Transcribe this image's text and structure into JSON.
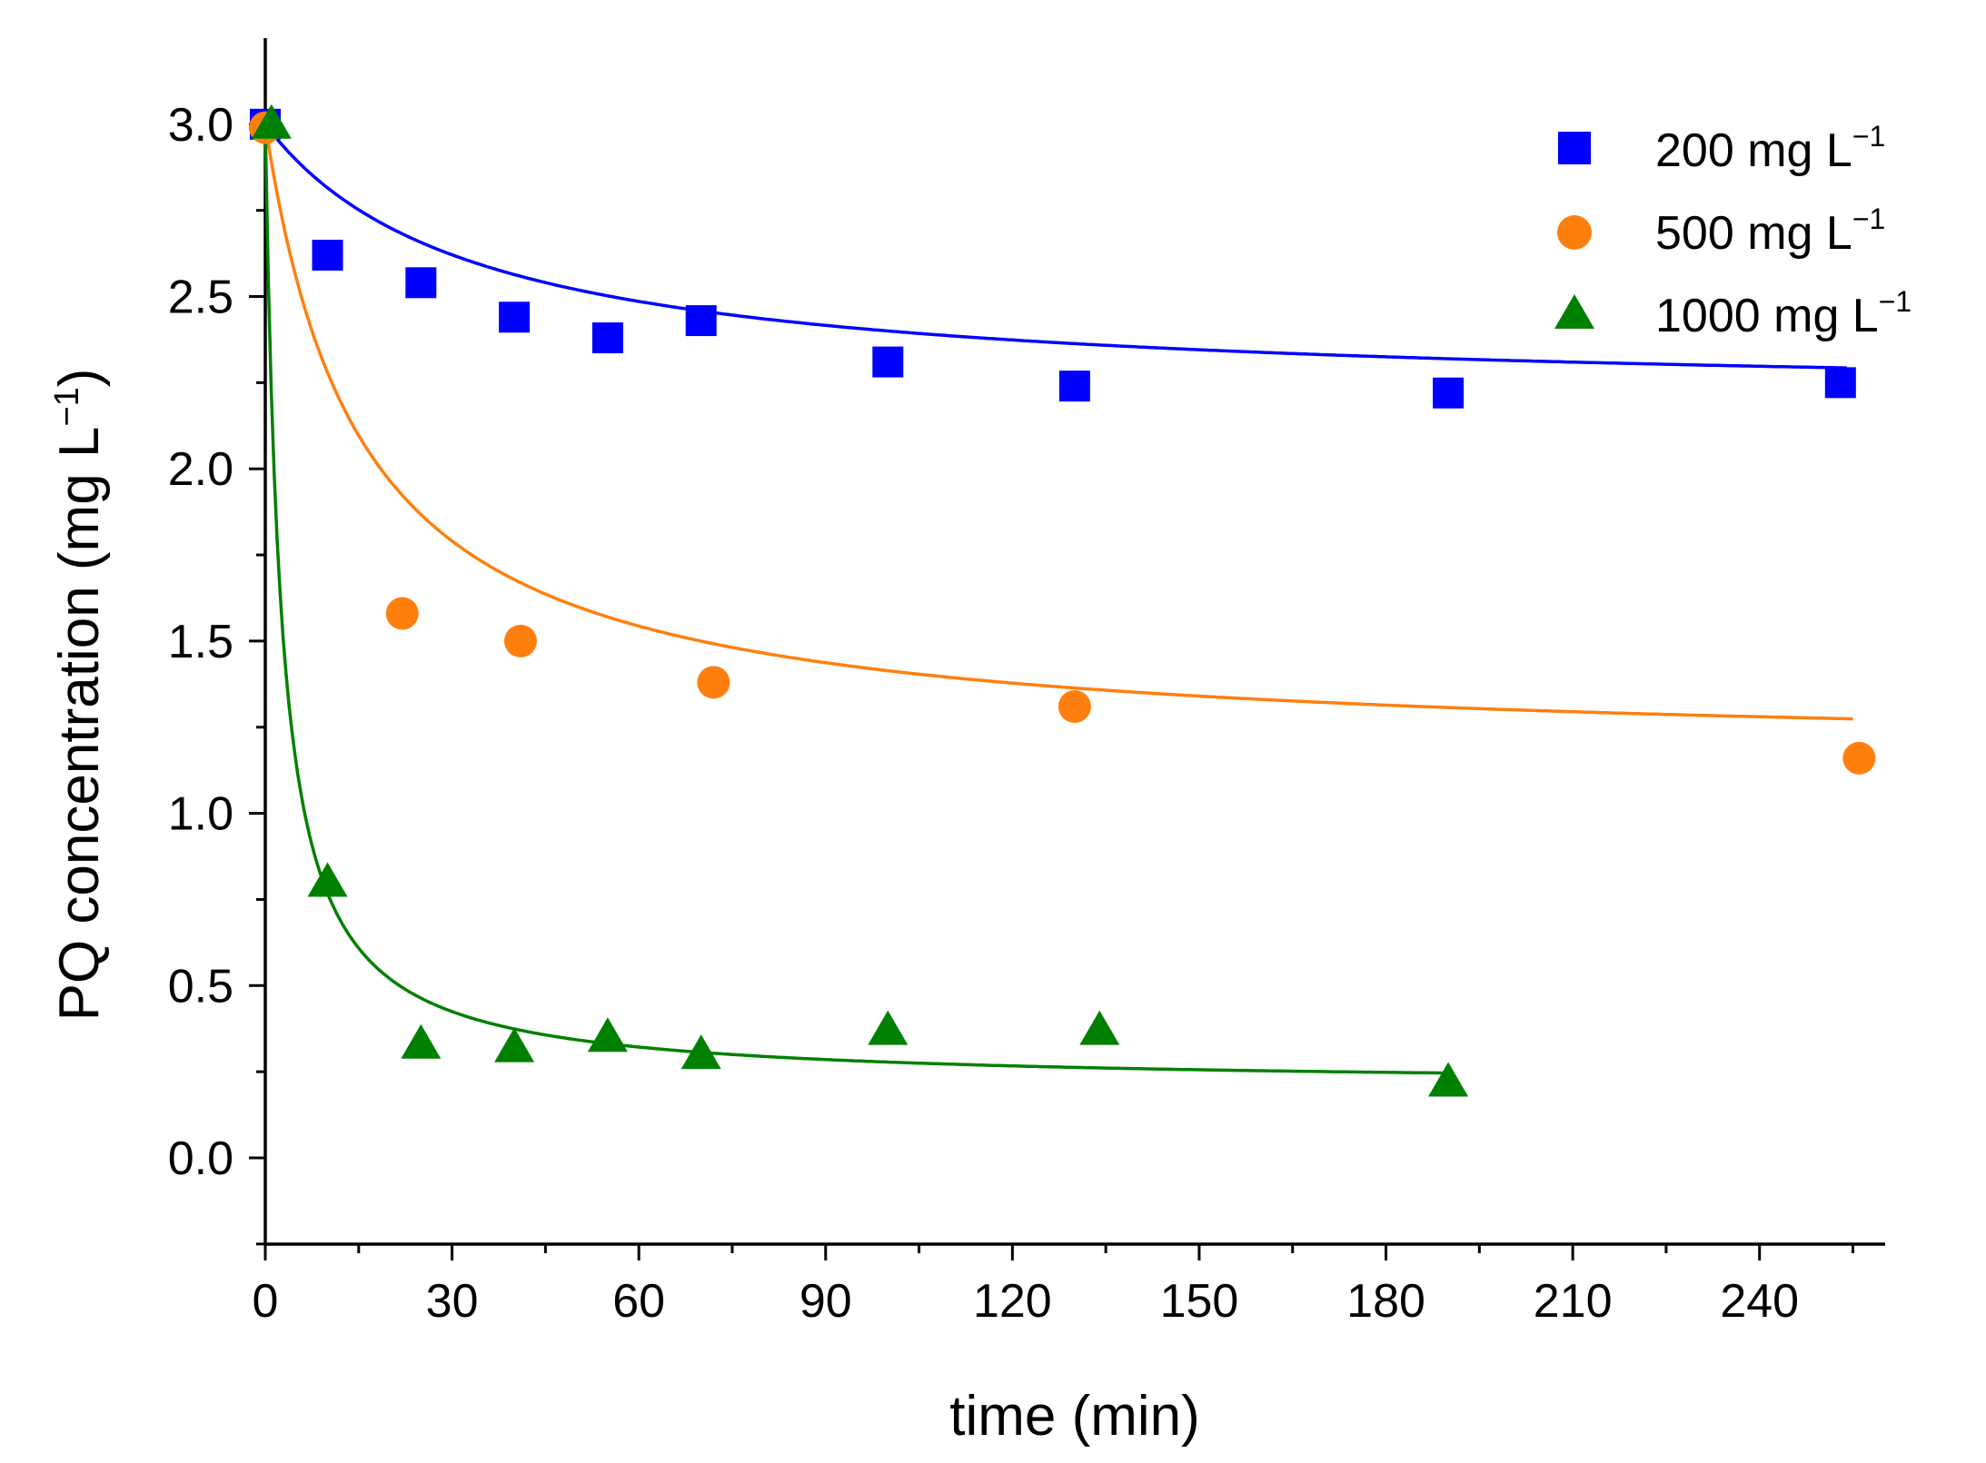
{
  "chart_data": {
    "type": "scatter",
    "title": "",
    "xlabel": "time (min)",
    "ylabel_main": "PQ concentration (mg L",
    "ylabel_sup": "−1",
    "ylabel_close": ")",
    "xlim": [
      0,
      260
    ],
    "ylim": [
      -0.25,
      3.25
    ],
    "xticks": [
      0,
      30,
      60,
      90,
      120,
      150,
      180,
      210,
      240
    ],
    "xtick_labels": [
      "0",
      "30",
      "60",
      "90",
      "120",
      "150",
      "180",
      "210",
      "240"
    ],
    "yticks": [
      0.0,
      0.5,
      1.0,
      1.5,
      2.0,
      2.5,
      3.0
    ],
    "ytick_labels": [
      "0.0",
      "0.5",
      "1.0",
      "1.5",
      "2.0",
      "2.5",
      "3.0"
    ],
    "legend_position": "top-right",
    "series": [
      {
        "name": "200 mg L",
        "name_sup": "−1",
        "marker": "square",
        "color": "#0000ff",
        "x": [
          0,
          10,
          25,
          40,
          55,
          70,
          100,
          130,
          190,
          253
        ],
        "y": [
          3.0,
          2.62,
          2.54,
          2.44,
          2.38,
          2.43,
          2.31,
          2.24,
          2.22,
          2.25
        ],
        "fit": {
          "c_inf": 2.2,
          "a": 0.8,
          "k": 0.03,
          "x_end": 254
        }
      },
      {
        "name": "500 mg L",
        "name_sup": "−1",
        "marker": "circle",
        "color": "#ff7f0e",
        "x": [
          0,
          22,
          41,
          72,
          130,
          256
        ],
        "y": [
          2.99,
          1.58,
          1.5,
          1.38,
          1.31,
          1.16
        ],
        "fit": {
          "c_inf": 1.17,
          "a": 1.83,
          "k": 0.065,
          "x_end": 255
        }
      },
      {
        "name": "1000 mg L",
        "name_sup": "−1",
        "marker": "triangle",
        "color": "#008000",
        "x": [
          1,
          10,
          25,
          40,
          55,
          70,
          100,
          134,
          190
        ],
        "y": [
          3.0,
          0.8,
          0.33,
          0.32,
          0.35,
          0.3,
          0.37,
          0.37,
          0.22
        ],
        "fit": {
          "c_inf": 0.21,
          "a": 2.79,
          "k": 0.4,
          "x_end": 190
        }
      }
    ]
  }
}
